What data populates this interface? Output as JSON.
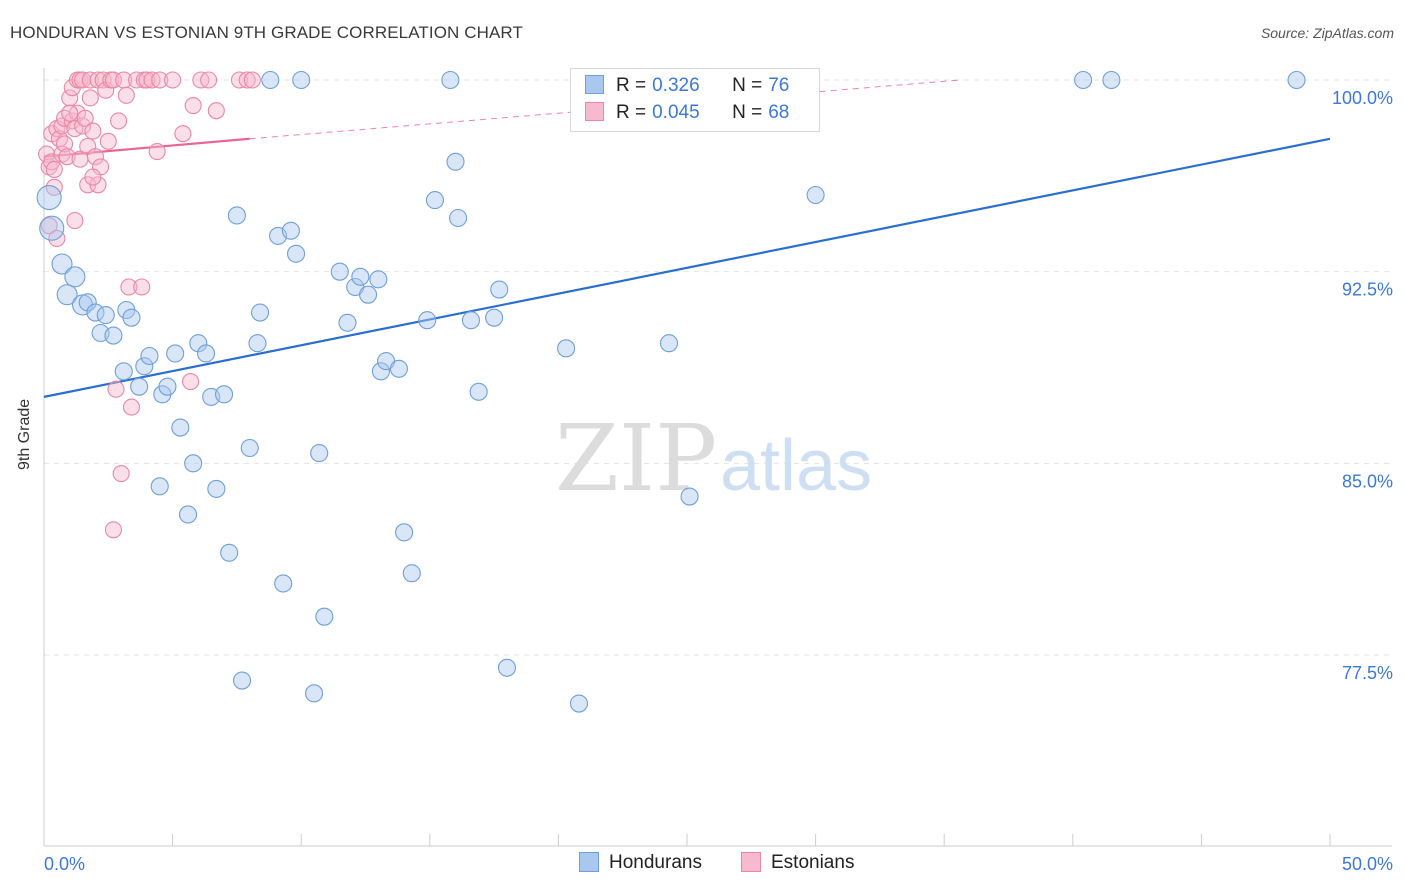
{
  "header": {
    "title": "HONDURAN VS ESTONIAN 9TH GRADE CORRELATION CHART",
    "source": "Source: ZipAtlas.com"
  },
  "watermark": {
    "zip": "ZIP",
    "atlas": "atlas"
  },
  "legend_top": [
    {
      "r_label": "R =",
      "r_value": "0.326",
      "n_label": "N =",
      "n_value": "76"
    },
    {
      "r_label": "R =",
      "r_value": "0.045",
      "n_label": "N =",
      "n_value": "68"
    }
  ],
  "legend_bottom": [
    "Hondurans",
    "Estonians"
  ],
  "colors": {
    "blue_fill": "#a9c8f0",
    "blue_stroke": "#6f9fd8",
    "blue_line": "#2a6fcf",
    "pink_fill": "#f7b9cd",
    "pink_stroke": "#ea86a6",
    "pink_line": "#e8668f",
    "axis_text": "#3b78d8",
    "grid": "#e3e3e3"
  },
  "chart_data": {
    "type": "scatter",
    "title": "HONDURAN VS ESTONIAN 9TH GRADE CORRELATION CHART",
    "xlabel": "",
    "ylabel": "9th Grade",
    "xlim": [
      0,
      50
    ],
    "ylim": [
      71.5,
      101.3
    ],
    "x_tick_labels": [
      {
        "value": 0,
        "label": "0.0%"
      },
      {
        "value": 50,
        "label": "50.0%"
      }
    ],
    "y_tick_labels": [
      {
        "value": 100,
        "label": "100.0%"
      },
      {
        "value": 92.5,
        "label": "92.5%"
      },
      {
        "value": 85,
        "label": "85.0%"
      },
      {
        "value": 77.5,
        "label": "77.5%"
      }
    ],
    "grid": "horizontal dashed",
    "legend_position": "top-center and bottom",
    "series": [
      {
        "name": "Hondurans",
        "color": "#a9c8f0",
        "r": 0.326,
        "n": 76,
        "trend": {
          "x": [
            0,
            50
          ],
          "y": [
            87.6,
            97.7
          ]
        },
        "points": [
          [
            0.2,
            95.4
          ],
          [
            0.3,
            94.2
          ],
          [
            0.7,
            92.8
          ],
          [
            0.9,
            91.6
          ],
          [
            1.2,
            92.3
          ],
          [
            1.5,
            91.2
          ],
          [
            1.7,
            91.3
          ],
          [
            2.0,
            90.9
          ],
          [
            2.2,
            90.1
          ],
          [
            2.4,
            90.8
          ],
          [
            2.7,
            90.0
          ],
          [
            3.1,
            88.6
          ],
          [
            3.2,
            91.0
          ],
          [
            3.4,
            90.7
          ],
          [
            3.7,
            88.0
          ],
          [
            3.9,
            88.8
          ],
          [
            4.1,
            89.2
          ],
          [
            4.5,
            84.1
          ],
          [
            4.6,
            87.7
          ],
          [
            4.8,
            88.0
          ],
          [
            5.1,
            89.3
          ],
          [
            5.3,
            86.4
          ],
          [
            5.6,
            83.0
          ],
          [
            5.8,
            85.0
          ],
          [
            6.0,
            89.7
          ],
          [
            6.3,
            89.3
          ],
          [
            6.5,
            87.6
          ],
          [
            6.7,
            84.0
          ],
          [
            7.0,
            87.7
          ],
          [
            7.2,
            81.5
          ],
          [
            7.5,
            94.7
          ],
          [
            7.7,
            76.5
          ],
          [
            8.0,
            85.6
          ],
          [
            8.3,
            89.7
          ],
          [
            8.4,
            90.9
          ],
          [
            8.8,
            100.0
          ],
          [
            9.1,
            93.9
          ],
          [
            9.3,
            80.3
          ],
          [
            9.6,
            94.1
          ],
          [
            9.8,
            93.2
          ],
          [
            10.0,
            100.0
          ],
          [
            10.5,
            76.0
          ],
          [
            10.7,
            85.4
          ],
          [
            10.9,
            79.0
          ],
          [
            11.5,
            92.5
          ],
          [
            11.8,
            90.5
          ],
          [
            12.1,
            91.9
          ],
          [
            12.3,
            92.3
          ],
          [
            12.6,
            91.6
          ],
          [
            13.0,
            92.2
          ],
          [
            13.1,
            88.6
          ],
          [
            13.3,
            89.0
          ],
          [
            13.8,
            88.7
          ],
          [
            14.0,
            82.3
          ],
          [
            14.3,
            80.7
          ],
          [
            14.9,
            90.6
          ],
          [
            15.2,
            95.3
          ],
          [
            15.8,
            100.0
          ],
          [
            16.0,
            96.8
          ],
          [
            16.1,
            94.6
          ],
          [
            16.6,
            90.6
          ],
          [
            16.9,
            87.8
          ],
          [
            17.5,
            90.7
          ],
          [
            17.7,
            91.8
          ],
          [
            18.0,
            77.0
          ],
          [
            20.3,
            89.5
          ],
          [
            20.8,
            75.6
          ],
          [
            24.3,
            89.7
          ],
          [
            24.6,
            100.0
          ],
          [
            25.1,
            83.7
          ],
          [
            25.5,
            100.0
          ],
          [
            26.7,
            100.0
          ],
          [
            30.0,
            95.5
          ],
          [
            40.4,
            100.0
          ],
          [
            41.5,
            100.0
          ],
          [
            48.7,
            100.0
          ]
        ]
      },
      {
        "name": "Estonians",
        "color": "#f7b9cd",
        "r": 0.045,
        "n": 68,
        "trend": {
          "x": [
            0,
            8.0
          ],
          "y": [
            97.0,
            97.7
          ]
        },
        "trend_extension": {
          "x": [
            8.0,
            35.6
          ],
          "y": [
            97.7,
            100.0
          ]
        },
        "points": [
          [
            0.1,
            97.1
          ],
          [
            0.2,
            96.6
          ],
          [
            0.2,
            94.3
          ],
          [
            0.3,
            97.9
          ],
          [
            0.3,
            96.8
          ],
          [
            0.4,
            95.8
          ],
          [
            0.5,
            93.8
          ],
          [
            0.5,
            98.1
          ],
          [
            0.6,
            97.7
          ],
          [
            0.7,
            98.2
          ],
          [
            0.7,
            97.1
          ],
          [
            0.8,
            97.5
          ],
          [
            0.8,
            98.5
          ],
          [
            0.9,
            97.0
          ],
          [
            1.0,
            99.3
          ],
          [
            1.1,
            98.4
          ],
          [
            1.1,
            99.7
          ],
          [
            1.2,
            98.1
          ],
          [
            1.2,
            94.5
          ],
          [
            1.3,
            100.0
          ],
          [
            1.3,
            98.7
          ],
          [
            1.4,
            96.9
          ],
          [
            1.4,
            100.0
          ],
          [
            1.5,
            100.0
          ],
          [
            1.5,
            98.2
          ],
          [
            1.6,
            98.5
          ],
          [
            1.7,
            97.4
          ],
          [
            1.7,
            95.9
          ],
          [
            1.8,
            99.3
          ],
          [
            1.8,
            100.0
          ],
          [
            1.9,
            98.0
          ],
          [
            2.0,
            97.0
          ],
          [
            2.1,
            95.9
          ],
          [
            2.1,
            100.0
          ],
          [
            2.2,
            96.6
          ],
          [
            2.3,
            100.0
          ],
          [
            2.4,
            99.6
          ],
          [
            2.5,
            97.6
          ],
          [
            2.6,
            100.0
          ],
          [
            2.7,
            100.0
          ],
          [
            2.8,
            87.9
          ],
          [
            2.9,
            98.4
          ],
          [
            3.1,
            100.0
          ],
          [
            3.2,
            99.4
          ],
          [
            3.3,
            91.9
          ],
          [
            3.4,
            87.2
          ],
          [
            3.6,
            100.0
          ],
          [
            3.8,
            91.9
          ],
          [
            3.9,
            100.0
          ],
          [
            4.0,
            100.0
          ],
          [
            4.2,
            100.0
          ],
          [
            4.4,
            97.2
          ],
          [
            4.5,
            100.0
          ],
          [
            5.0,
            100.0
          ],
          [
            5.4,
            97.9
          ],
          [
            5.7,
            88.2
          ],
          [
            5.8,
            99.0
          ],
          [
            6.1,
            100.0
          ],
          [
            6.4,
            100.0
          ],
          [
            6.7,
            98.8
          ],
          [
            7.6,
            100.0
          ],
          [
            7.9,
            100.0
          ],
          [
            8.1,
            100.0
          ],
          [
            3.0,
            84.6
          ],
          [
            2.7,
            82.4
          ],
          [
            1.9,
            96.2
          ],
          [
            0.4,
            96.5
          ],
          [
            1.0,
            98.7
          ]
        ]
      }
    ]
  }
}
